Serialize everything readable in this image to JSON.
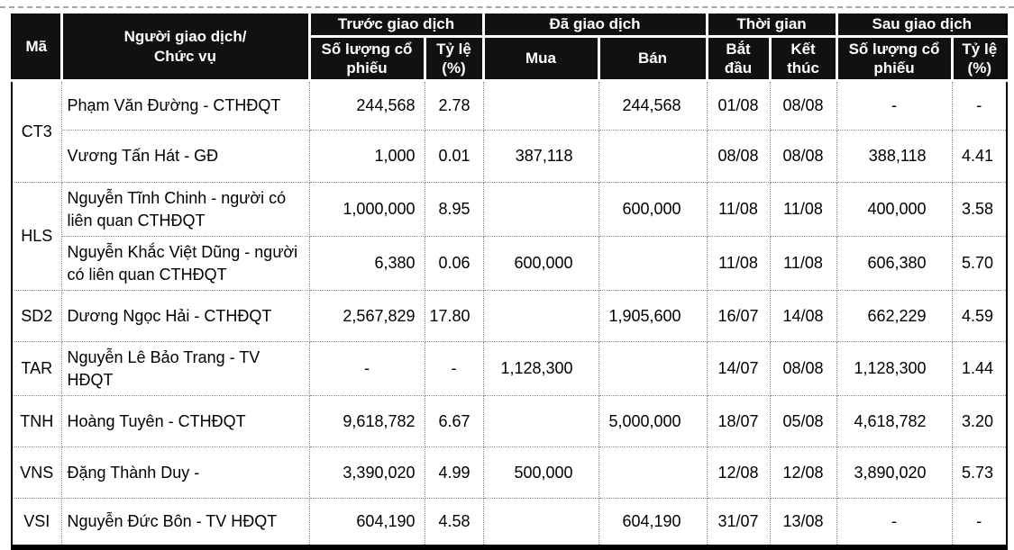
{
  "colors": {
    "header_bg": "#111111",
    "header_text": "#ffffff",
    "body_text": "#000000",
    "grid_dotted": "#8c8c8c",
    "outer_border": "#000000",
    "top_dashed_line": "#a6a6a6"
  },
  "table": {
    "header": {
      "code": "Mã",
      "trader": "Người giao dịch/\nChức vụ",
      "before": "Trước giao dịch",
      "traded": "Đã giao dịch",
      "time": "Thời gian",
      "after": "Sau giao dịch",
      "shares": "Số lượng cổ\nphiếu",
      "pct": "Tỷ lệ\n(%)",
      "buy": "Mua",
      "sell": "Bán",
      "start": "Bắt\nđầu",
      "end": "Kết\nthúc"
    },
    "groups": [
      {
        "code": "CT3",
        "rows": [
          {
            "name": "Phạm Văn Đường - CTHĐQT",
            "before_shares": "244,568",
            "before_pct": "2.78",
            "buy": "",
            "sell": "244,568",
            "start": "01/08",
            "end": "08/08",
            "after_shares": "-",
            "after_pct": "-"
          },
          {
            "name": "Vương Tấn Hát - GĐ",
            "before_shares": "1,000",
            "before_pct": "0.01",
            "buy": "387,118",
            "sell": "",
            "start": "08/08",
            "end": "08/08",
            "after_shares": "388,118",
            "after_pct": "4.41"
          }
        ]
      },
      {
        "code": "HLS",
        "rows": [
          {
            "name": "Nguyễn Tĩnh Chinh - người có liên quan CTHĐQT",
            "before_shares": "1,000,000",
            "before_pct": "8.95",
            "buy": "",
            "sell": "600,000",
            "start": "11/08",
            "end": "11/08",
            "after_shares": "400,000",
            "after_pct": "3.58"
          },
          {
            "name": "Nguyễn Khắc Việt Dũng - người có liên quan CTHĐQT",
            "before_shares": "6,380",
            "before_pct": "0.06",
            "buy": "600,000",
            "sell": "",
            "start": "11/08",
            "end": "11/08",
            "after_shares": "606,380",
            "after_pct": "5.70"
          }
        ]
      },
      {
        "code": "SD2",
        "rows": [
          {
            "name": "Dương Ngọc Hải - CTHĐQT",
            "before_shares": "2,567,829",
            "before_pct": "17.80",
            "buy": "",
            "sell": "1,905,600",
            "start": "16/07",
            "end": "14/08",
            "after_shares": "662,229",
            "after_pct": "4.59"
          }
        ]
      },
      {
        "code": "TAR",
        "rows": [
          {
            "name": "Nguyễn Lê Bảo Trang - TV HĐQT",
            "before_shares": "-",
            "before_pct": "-",
            "buy": "1,128,300",
            "sell": "",
            "start": "14/07",
            "end": "08/08",
            "after_shares": "1,128,300",
            "after_pct": "1.44"
          }
        ]
      },
      {
        "code": "TNH",
        "rows": [
          {
            "name": "Hoàng Tuyên - CTHĐQT",
            "before_shares": "9,618,782",
            "before_pct": "6.67",
            "buy": "",
            "sell": "5,000,000",
            "start": "18/07",
            "end": "05/08",
            "after_shares": "4,618,782",
            "after_pct": "3.20"
          }
        ]
      },
      {
        "code": "VNS",
        "rows": [
          {
            "name": "Đặng Thành Duy -",
            "before_shares": "3,390,020",
            "before_pct": "4.99",
            "buy": "500,000",
            "sell": "",
            "start": "12/08",
            "end": "12/08",
            "after_shares": "3,890,020",
            "after_pct": "5.73"
          }
        ]
      },
      {
        "code": "VSI",
        "rows": [
          {
            "name": "Nguyễn Đức Bôn - TV HĐQT",
            "before_shares": "604,190",
            "before_pct": "4.58",
            "buy": "",
            "sell": "604,190",
            "start": "31/07",
            "end": "13/08",
            "after_shares": "-",
            "after_pct": "-"
          }
        ]
      }
    ]
  }
}
